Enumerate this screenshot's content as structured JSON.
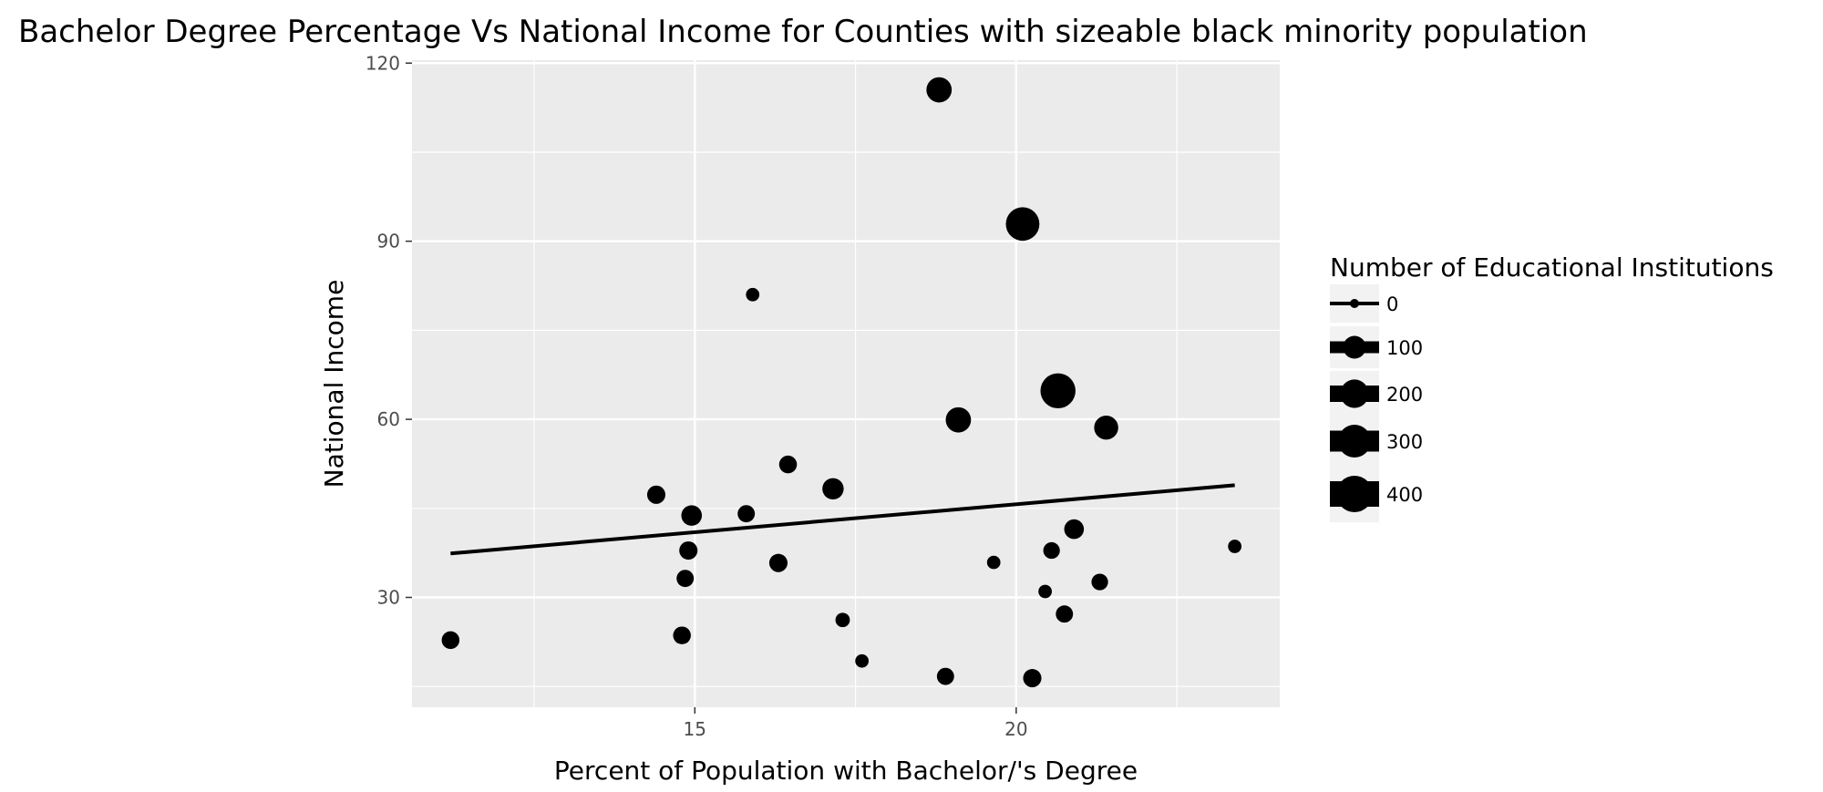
{
  "chart_data": {
    "type": "scatter",
    "title": "Bachelor Degree Percentage Vs National Income for Counties with sizeable black minority population",
    "xlabel": "Percent of Population with Bachelor/'s Degree",
    "ylabel": "National Income",
    "xlim": [
      10.6,
      24.1
    ],
    "ylim": [
      11.5,
      120.5
    ],
    "x_ticks": [
      15,
      20
    ],
    "y_ticks": [
      30,
      60,
      90,
      120
    ],
    "grid": true,
    "legend": {
      "title": "Number of Educational Institutions",
      "placement": "right",
      "entries": [
        {
          "label": "0",
          "size": 0
        },
        {
          "label": "100",
          "size": 100
        },
        {
          "label": "200",
          "size": 200
        },
        {
          "label": "300",
          "size": 300
        },
        {
          "label": "400",
          "size": 400
        }
      ]
    },
    "points": [
      {
        "x": 11.2,
        "y": 22.8,
        "size": 40
      },
      {
        "x": 14.4,
        "y": 47.3,
        "size": 45
      },
      {
        "x": 14.8,
        "y": 23.6,
        "size": 40
      },
      {
        "x": 14.85,
        "y": 33.2,
        "size": 35
      },
      {
        "x": 14.9,
        "y": 37.9,
        "size": 45
      },
      {
        "x": 14.95,
        "y": 43.8,
        "size": 70
      },
      {
        "x": 15.8,
        "y": 44.1,
        "size": 35
      },
      {
        "x": 15.9,
        "y": 81.0,
        "size": 10
      },
      {
        "x": 16.3,
        "y": 35.8,
        "size": 45
      },
      {
        "x": 16.45,
        "y": 52.4,
        "size": 40
      },
      {
        "x": 17.15,
        "y": 48.3,
        "size": 80
      },
      {
        "x": 17.3,
        "y": 26.2,
        "size": 15
      },
      {
        "x": 17.6,
        "y": 19.3,
        "size": 10
      },
      {
        "x": 18.8,
        "y": 115.5,
        "size": 140
      },
      {
        "x": 18.9,
        "y": 16.7,
        "size": 35
      },
      {
        "x": 19.1,
        "y": 59.9,
        "size": 140
      },
      {
        "x": 19.65,
        "y": 35.9,
        "size": 10
      },
      {
        "x": 20.1,
        "y": 92.9,
        "size": 320
      },
      {
        "x": 20.25,
        "y": 16.4,
        "size": 45
      },
      {
        "x": 20.45,
        "y": 31.0,
        "size": 10
      },
      {
        "x": 20.55,
        "y": 37.9,
        "size": 30
      },
      {
        "x": 20.65,
        "y": 64.8,
        "size": 360
      },
      {
        "x": 20.75,
        "y": 27.2,
        "size": 35
      },
      {
        "x": 20.9,
        "y": 41.5,
        "size": 60
      },
      {
        "x": 21.3,
        "y": 32.6,
        "size": 30
      },
      {
        "x": 21.4,
        "y": 58.6,
        "size": 120
      },
      {
        "x": 23.4,
        "y": 38.6,
        "size": 10
      }
    ],
    "trendline": {
      "x": [
        11.2,
        23.4
      ],
      "y": [
        37.4,
        48.9
      ]
    },
    "colors": {
      "panel": "#ebebeb",
      "grid_major": "#ffffff",
      "point": "#000000",
      "line": "#000000"
    }
  }
}
